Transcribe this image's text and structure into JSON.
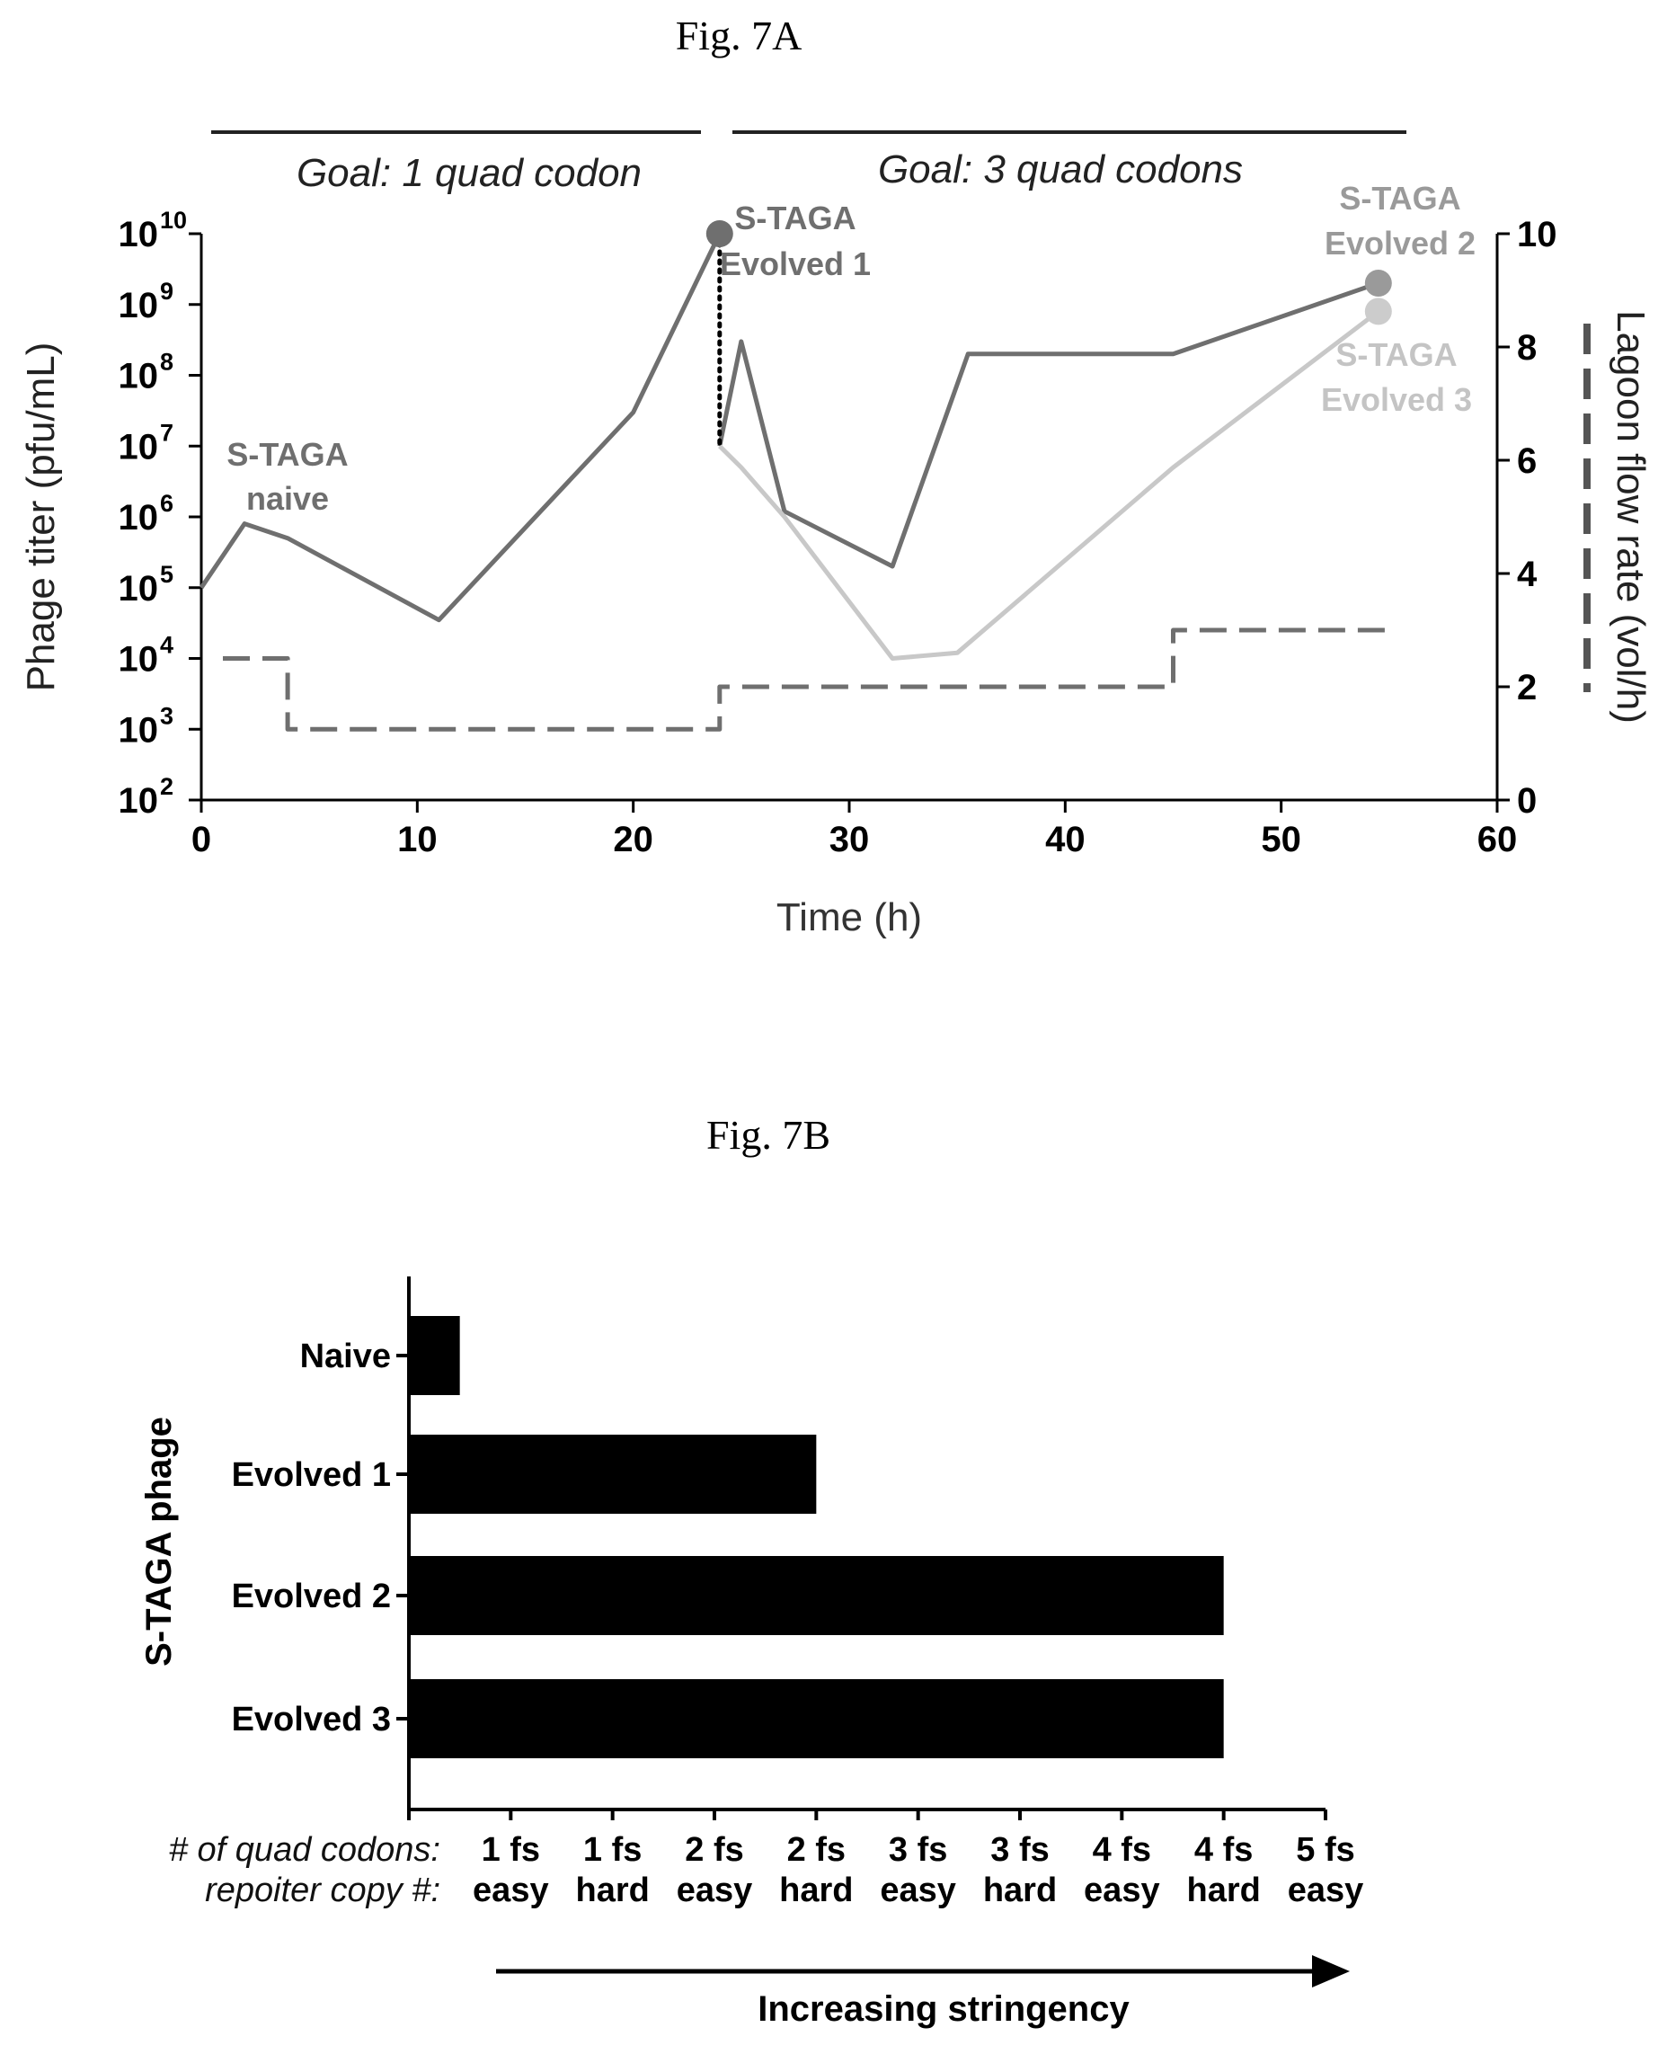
{
  "chart_data": [
    {
      "type": "line",
      "title": "Fig. 7A",
      "xlabel": "Time (h)",
      "ylabel": "Phage titer (pfu/mL)",
      "ylabel_right": "Lagoon flow rate (vol/h)",
      "xlim": [
        0,
        60
      ],
      "xticks": [
        0,
        10,
        20,
        30,
        40,
        50,
        60
      ],
      "y_scale": "log",
      "ylim": [
        100,
        10000000000
      ],
      "yticks": [
        {
          "base": "10",
          "exp": "10"
        },
        {
          "base": "10",
          "exp": "9"
        },
        {
          "base": "10",
          "exp": "8"
        },
        {
          "base": "10",
          "exp": "7"
        },
        {
          "base": "10",
          "exp": "6"
        },
        {
          "base": "10",
          "exp": "5"
        },
        {
          "base": "10",
          "exp": "4"
        },
        {
          "base": "10",
          "exp": "3"
        },
        {
          "base": "10",
          "exp": "2"
        }
      ],
      "y2lim": [
        0,
        10
      ],
      "y2ticks": [
        "10",
        "8",
        "6",
        "4",
        "2",
        "0"
      ],
      "phase_labels": [
        "Goal: 1 quad codon",
        "Goal: 3 quad codons"
      ],
      "annotations": [
        {
          "lines": [
            "S-TAGA",
            "naive"
          ],
          "color": "#6f6f6f"
        },
        {
          "lines": [
            "S-TAGA",
            "Evolved 1"
          ],
          "color": "#6f6f6f"
        },
        {
          "lines": [
            "S-TAGA",
            "Evolved 2"
          ],
          "color": "#9a9a9a"
        },
        {
          "lines": [
            "S-TAGA",
            "Evolved 3"
          ],
          "color": "#c4c4c4"
        }
      ],
      "series": [
        {
          "color": "#6f6f6f",
          "axis": "left",
          "x": [
            0,
            2,
            4,
            11,
            20,
            24
          ],
          "y": [
            100000,
            800000,
            500000,
            35000,
            30000000,
            10000000000
          ]
        },
        {
          "color": "#6f6f6f",
          "axis": "left",
          "x": [
            24,
            25,
            27,
            32,
            35.5,
            45,
            54.5
          ],
          "y": [
            10000000,
            300000000,
            1200000,
            200000,
            200000000,
            200000000,
            2000000000
          ]
        },
        {
          "color": "#c8c8c8",
          "axis": "left",
          "x": [
            24,
            25,
            27,
            32,
            35,
            45,
            54.5
          ],
          "y": [
            10000000,
            5000000,
            1000000,
            10000,
            12000,
            5000000,
            800000000
          ]
        },
        {
          "color": "#000000",
          "axis": "left",
          "style": "dotted",
          "x": [
            24,
            24
          ],
          "y": [
            10000000000,
            10000000
          ]
        },
        {
          "color": "#6f6f6f",
          "axis": "right",
          "style": "dashed-step",
          "x": [
            1,
            4,
            4,
            24,
            24,
            45,
            45,
            55
          ],
          "y": [
            2.5,
            2.5,
            1.25,
            1.25,
            2,
            2,
            3,
            3
          ]
        }
      ],
      "markers": [
        {
          "x": 24,
          "y": 10000000000,
          "color": "#6f6f6f"
        },
        {
          "x": 54.5,
          "y": 2000000000,
          "color": "#9a9a9a"
        },
        {
          "x": 54.5,
          "y": 800000000,
          "color": "#cccccc"
        }
      ]
    },
    {
      "type": "bar",
      "orientation": "horizontal",
      "title": "Fig. 7B",
      "ylabel": "S-TAGA phage",
      "categories": [
        "Naive",
        "Evolved 1",
        "Evolved 2",
        "Evolved 3"
      ],
      "values": [
        0.5,
        4,
        8,
        8
      ],
      "xlim": [
        0,
        9
      ],
      "bar_color": "#000000",
      "xtick_row_labels": [
        "# of quad codons:",
        "repoiter copy #:"
      ],
      "xticks": [
        {
          "top": "1 fs",
          "bottom": "easy"
        },
        {
          "top": "1 fs",
          "bottom": "hard"
        },
        {
          "top": "2 fs",
          "bottom": "easy"
        },
        {
          "top": "2 fs",
          "bottom": "hard"
        },
        {
          "top": "3 fs",
          "bottom": "easy"
        },
        {
          "top": "3 fs",
          "bottom": "hard"
        },
        {
          "top": "4 fs",
          "bottom": "easy"
        },
        {
          "top": "4 fs",
          "bottom": "hard"
        },
        {
          "top": "5 fs",
          "bottom": "easy"
        }
      ],
      "arrow_label": "Increasing stringency"
    }
  ]
}
